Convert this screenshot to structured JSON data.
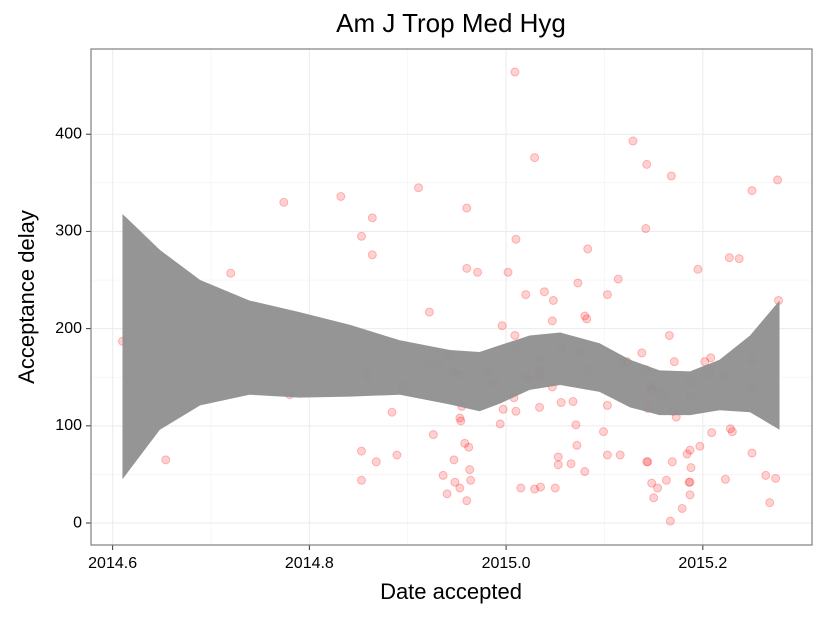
{
  "chart_data": {
    "type": "scatter",
    "title": "Am J Trop Med Hyg",
    "x_label": "Date accepted",
    "y_label": "Acceptance delay",
    "x": [
      2014.61,
      2014.654,
      2014.72,
      2014.774,
      2014.78,
      2014.832,
      2014.853,
      2014.864,
      2014.864,
      2014.859,
      2014.853,
      2014.853,
      2014.868,
      2014.884,
      2014.889,
      2014.895,
      2014.911,
      2014.922,
      2014.921,
      2014.926,
      2014.931,
      2014.936,
      2014.94,
      2014.941,
      2014.946,
      2014.947,
      2014.948,
      2014.951,
      2014.953,
      2014.953,
      2014.954,
      2014.955,
      2014.958,
      2014.96,
      2014.96,
      2014.96,
      2014.962,
      2014.963,
      2014.964,
      2014.971,
      2014.981,
      2014.988,
      2014.994,
      2014.996,
      2014.997,
      2015.002,
      2015.009,
      2015.01,
      2015.009,
      2015.01,
      2015.008,
      2015.01,
      2015.015,
      2015.02,
      2015.021,
      2015.029,
      2015.029,
      2015.034,
      2015.034,
      2015.034,
      2015.034,
      2015.035,
      2015.039,
      2015.047,
      2015.048,
      2015.047,
      2015.05,
      2015.053,
      2015.053,
      2015.056,
      2015.056,
      2015.066,
      2015.068,
      2015.071,
      2015.072,
      2015.073,
      2015.076,
      2015.08,
      2015.082,
      2015.08,
      2015.083,
      2015.084,
      2015.099,
      2015.103,
      2015.103,
      2015.103,
      2015.114,
      2015.116,
      2015.117,
      2015.123,
      2015.129,
      2015.138,
      2015.142,
      2015.143,
      2015.142,
      2015.143,
      2015.144,
      2015.144,
      2015.146,
      2015.148,
      2015.148,
      2015.15,
      2015.154,
      2015.154,
      2015.161,
      2015.163,
      2015.166,
      2015.167,
      2015.168,
      2015.169,
      2015.17,
      2015.171,
      2015.173,
      2015.179,
      2015.184,
      2015.186,
      2015.187,
      2015.187,
      2015.188,
      2015.188,
      2015.188,
      2015.187,
      2015.195,
      2015.197,
      2015.202,
      2015.208,
      2015.209,
      2015.207,
      2015.223,
      2015.223,
      2015.227,
      2015.228,
      2015.23,
      2015.237,
      2015.25,
      2015.25,
      2015.25,
      2015.25,
      2015.264,
      2015.268,
      2015.274,
      2015.276,
      2015.277
    ],
    "values": [
      187,
      65,
      257,
      330,
      132,
      336,
      295,
      314,
      276,
      152,
      74,
      44,
      63,
      114,
      70,
      140,
      345,
      217,
      164,
      91,
      165,
      49,
      30,
      173,
      155,
      65,
      42,
      153,
      108,
      36,
      105,
      120,
      82,
      324,
      262,
      23,
      78,
      55,
      44,
      258,
      156,
      144,
      102,
      203,
      117,
      258,
      464,
      292,
      193,
      179,
      129,
      115,
      36,
      235,
      150,
      376,
      35,
      169,
      158,
      151,
      119,
      37,
      238,
      208,
      229,
      140,
      36,
      68,
      60,
      124,
      182,
      61,
      125,
      101,
      80,
      247,
      177,
      213,
      210,
      53,
      282,
      157,
      94,
      235,
      121,
      70,
      251,
      70,
      165,
      166,
      393,
      175,
      303,
      369,
      158,
      63,
      118,
      63,
      141,
      41,
      138,
      26,
      36,
      135,
      129,
      44,
      193,
      2,
      357,
      63,
      115,
      166,
      109,
      15,
      71,
      42,
      42,
      75,
      146,
      130,
      57,
      29,
      261,
      79,
      166,
      170,
      93,
      154,
      151,
      45,
      273,
      97,
      94,
      272,
      342,
      168,
      136,
      72,
      49,
      21,
      46,
      353,
      229
    ],
    "color": "#ff0000",
    "band": {
      "x": [
        2014.61,
        2014.648,
        2014.689,
        2014.739,
        2014.79,
        2014.841,
        2014.892,
        2014.943,
        2014.973,
        2014.994,
        2015.024,
        2015.055,
        2015.095,
        2015.126,
        2015.156,
        2015.187,
        2015.217,
        2015.248,
        2015.278
      ],
      "upper": [
        318,
        281,
        250,
        229,
        217,
        204,
        188,
        178,
        176,
        183,
        193,
        196,
        185,
        168,
        157,
        156,
        168,
        193,
        229
      ],
      "lower": [
        45,
        96,
        121,
        132,
        129,
        130,
        132,
        122,
        115,
        123,
        137,
        142,
        135,
        119,
        111,
        111,
        116,
        114,
        96
      ],
      "color": "#8f8f8f"
    },
    "xlim": [
      2014.578,
      2015.311
    ],
    "ylim": [
      -22.6,
      487.7
    ],
    "xticks": [
      2014.6,
      2014.8,
      {
        "value": 2015.0,
        "label": "2015.0"
      },
      2015.2
    ],
    "yticks": [
      0,
      100,
      200,
      300,
      400
    ],
    "grid": true
  }
}
